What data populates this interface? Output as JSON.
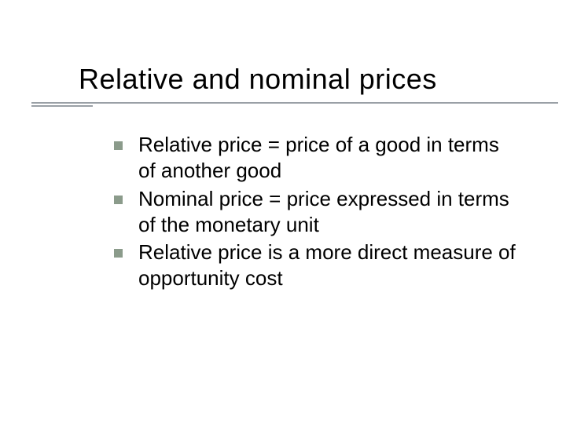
{
  "slide": {
    "title": "Relative and nominal prices",
    "title_fontsize": 36,
    "title_color": "#000000",
    "underline_color": "#9aa0a6",
    "bullet_marker_color": "#8b9b8b",
    "bullet_marker_size": 11,
    "bullet_fontsize": 26,
    "bullet_color": "#000000",
    "background_color": "#ffffff",
    "bullets": [
      {
        "text": "Relative price = price of a good in terms of another good"
      },
      {
        "text": "Nominal price = price expressed in terms of the monetary unit"
      },
      {
        "text": "Relative price is a more direct measure of opportunity cost"
      }
    ]
  }
}
